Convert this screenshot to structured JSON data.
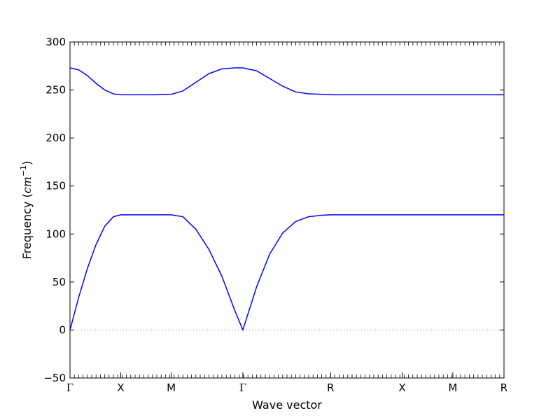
{
  "chart_data": {
    "type": "line",
    "title": "",
    "xlabel": "Wave vector",
    "ylabel_prefix": "Frequency (",
    "ylabel_unit_base": "cm",
    "ylabel_unit_exp": "−1",
    "ylabel_suffix": ")",
    "ylim": [
      -50,
      300
    ],
    "yticks": [
      -50,
      0,
      50,
      100,
      150,
      200,
      250,
      300
    ],
    "ytick_labels": [
      "−50",
      "0",
      "50",
      "100",
      "150",
      "200",
      "250",
      "300"
    ],
    "xlim": [
      0,
      1
    ],
    "xticks": [
      {
        "label": "Γ",
        "x": 0.0
      },
      {
        "label": "X",
        "x": 0.1167
      },
      {
        "label": "M",
        "x": 0.2333
      },
      {
        "label": "Γ",
        "x": 0.3983
      },
      {
        "label": "R",
        "x": 0.6004
      },
      {
        "label": "X",
        "x": 0.7654
      },
      {
        "label": "M",
        "x": 0.8821
      },
      {
        "label": "R",
        "x": 1.0
      }
    ],
    "grid": false,
    "zero_line": {
      "y": 0,
      "style": "dotted",
      "color": "#808080"
    },
    "color": "#0000ff",
    "series": [
      {
        "x": [
          0,
          0.02,
          0.04,
          0.06,
          0.08,
          0.1,
          0.1167,
          0.15,
          0.2,
          0.2333,
          0.26,
          0.29,
          0.32,
          0.35,
          0.38,
          0.3983,
          0.43,
          0.46,
          0.49,
          0.52,
          0.55,
          0.58,
          0.6004,
          0.7654,
          0.8821,
          1.0
        ],
        "values": [
          0,
          34,
          64,
          89,
          108,
          118,
          120,
          120,
          120,
          120,
          118,
          105,
          84,
          56,
          20,
          0,
          45,
          79,
          101,
          113,
          118,
          119.5,
          120,
          120,
          120,
          120
        ]
      },
      {
        "x": [
          0,
          0.02,
          0.04,
          0.06,
          0.08,
          0.1,
          0.1167,
          0.15,
          0.2,
          0.2333,
          0.26,
          0.29,
          0.32,
          0.35,
          0.38,
          0.3983,
          0.43,
          0.46,
          0.49,
          0.52,
          0.55,
          0.58,
          0.6004,
          0.7654,
          0.8821,
          1.0
        ],
        "values": [
          273,
          271,
          265,
          257,
          250,
          246,
          245,
          245,
          245,
          245.5,
          249,
          258,
          267,
          272,
          273,
          273,
          270,
          262,
          254,
          248,
          246,
          245.5,
          245,
          245,
          245,
          245
        ]
      }
    ]
  }
}
